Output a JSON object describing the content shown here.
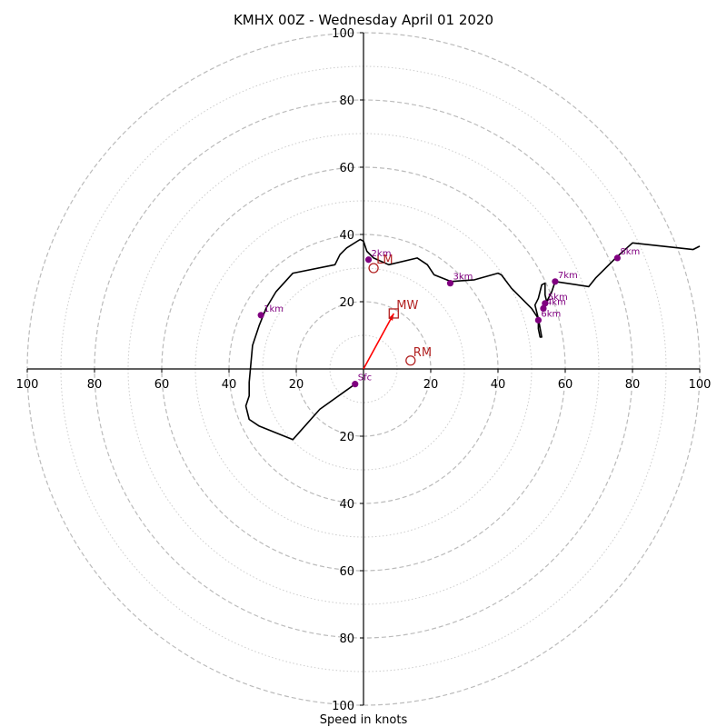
{
  "chart_data": {
    "type": "hodograph",
    "title": "KMHX 00Z - Wednesday April 01 2020",
    "xlabel": "Speed in knots",
    "range": [
      -100,
      100
    ],
    "rings_dashed": [
      20,
      40,
      60,
      80,
      100
    ],
    "rings_dotted": [
      10,
      30,
      50,
      70,
      90
    ],
    "x_tick_labels": [
      "100",
      "80",
      "60",
      "40",
      "20",
      "20",
      "40",
      "60",
      "80",
      "100"
    ],
    "x_tick_values": [
      -100,
      -80,
      -60,
      -40,
      -20,
      20,
      40,
      60,
      80,
      100
    ],
    "y_tick_labels": [
      "100",
      "80",
      "60",
      "40",
      "20",
      "20",
      "40",
      "60",
      "80",
      "100"
    ],
    "y_tick_values": [
      100,
      80,
      60,
      40,
      20,
      -20,
      -40,
      -60,
      -80,
      -100
    ],
    "hodograph_line": [
      [
        -2.5,
        -4.5
      ],
      [
        -13,
        -12
      ],
      [
        -21,
        -21
      ],
      [
        -31,
        -17
      ],
      [
        -34,
        -15
      ],
      [
        -35,
        -11
      ],
      [
        -34,
        -8
      ],
      [
        -34,
        -4
      ],
      [
        -33,
        7
      ],
      [
        -31,
        13
      ],
      [
        -29,
        18
      ],
      [
        -26,
        23
      ],
      [
        -21,
        28.5
      ],
      [
        -8.5,
        31
      ],
      [
        -7,
        34
      ],
      [
        -5,
        36
      ],
      [
        -1,
        38.5
      ],
      [
        0,
        38
      ],
      [
        1,
        35
      ],
      [
        3,
        33
      ],
      [
        7.5,
        31
      ],
      [
        16,
        33
      ],
      [
        19,
        31
      ],
      [
        21,
        28
      ],
      [
        26,
        26
      ],
      [
        33,
        26.5
      ],
      [
        40,
        28.5
      ],
      [
        41,
        28
      ],
      [
        44,
        24
      ],
      [
        47,
        21
      ],
      [
        50,
        18
      ],
      [
        52,
        15
      ],
      [
        52,
        12
      ],
      [
        52.5,
        9.5
      ],
      [
        53,
        9.5
      ],
      [
        52,
        15
      ],
      [
        51,
        19
      ],
      [
        52,
        21
      ],
      [
        53,
        25
      ],
      [
        54,
        25.5
      ],
      [
        54,
        22
      ],
      [
        54.5,
        20
      ],
      [
        56,
        23
      ],
      [
        57,
        26
      ],
      [
        67,
        24.5
      ],
      [
        69,
        27
      ],
      [
        75,
        33
      ],
      [
        80,
        37.5
      ],
      [
        98,
        35.5
      ],
      [
        100,
        36.5
      ]
    ],
    "height_markers": [
      {
        "label": "Sfc",
        "u": -2.5,
        "v": -4.5
      },
      {
        "label": "1km",
        "u": -30.5,
        "v": 16
      },
      {
        "label": "2km",
        "u": 1.5,
        "v": 32.5
      },
      {
        "label": "3km",
        "u": 25.8,
        "v": 25.5
      },
      {
        "label": "4km",
        "u": 53.5,
        "v": 18
      },
      {
        "label": "5km",
        "u": 54,
        "v": 19.5
      },
      {
        "label": "6km",
        "u": 52,
        "v": 14.5
      },
      {
        "label": "7km",
        "u": 57,
        "v": 26
      },
      {
        "label": "8km",
        "u": 75.5,
        "v": 33
      }
    ],
    "storm_motion": [
      {
        "label": "LM",
        "u": 3,
        "v": 30,
        "symbol": "circle"
      },
      {
        "label": "RM",
        "u": 14,
        "v": 2.5,
        "symbol": "circle"
      },
      {
        "label": "MW",
        "u": 9,
        "v": 16.5,
        "symbol": "square"
      }
    ],
    "colors": {
      "line": "#000000",
      "markers": "#800080",
      "storm_motion": "#b22222",
      "arrow": "#ff0000",
      "rings": "#bbbbbb"
    }
  }
}
